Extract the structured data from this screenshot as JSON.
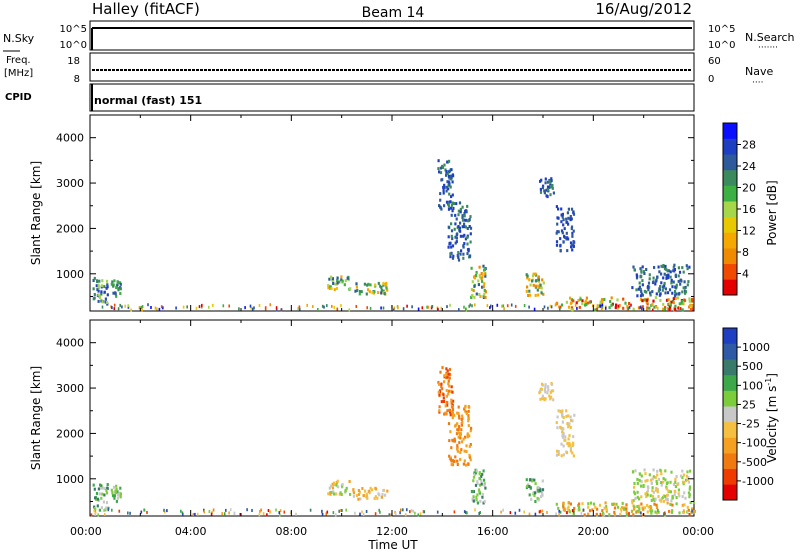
{
  "header": {
    "station": "Halley (fitACF)",
    "beam": "Beam 14",
    "date": "16/Aug/2012"
  },
  "panels": {
    "nsky": {
      "left_label": "N.Sky",
      "left_ticks": [
        "10^5",
        "10^0"
      ],
      "right_ticks": [
        "10^5",
        "10^0"
      ],
      "right_label": "N.Search",
      "right_dots": "·······"
    },
    "freq": {
      "left_label_1": "Freq.",
      "left_label_2": "[MHz]",
      "left_ticks": [
        "18",
        "8"
      ],
      "right_ticks": [
        "60",
        "0"
      ],
      "right_label": "Nave",
      "right_dots": "····"
    },
    "cpid": {
      "label": "CPID",
      "text": "normal (fast) 151"
    }
  },
  "chart_data": [
    {
      "type": "heatmap",
      "title": "",
      "xlabel": "",
      "ylabel": "Slant Range [km]",
      "x_range_hours": [
        0,
        24
      ],
      "ylim": [
        180,
        4500
      ],
      "y_ticks": [
        "4000",
        "3000",
        "2000",
        "1000"
      ],
      "y_tick_values": [
        4000,
        3000,
        2000,
        1000
      ],
      "colorbar": {
        "label": "Power [dB]",
        "ticks": [
          "28",
          "24",
          "20",
          "16",
          "12",
          "8",
          "4"
        ],
        "colors": [
          "#e50000",
          "#f04a00",
          "#f08a00",
          "#f5a800",
          "#e8c800",
          "#a6d64a",
          "#3cb043",
          "#3b8a5e",
          "#2d5a9a",
          "#1f3fc2",
          "#0a10ff"
        ]
      },
      "clusters": [
        {
          "t0": 0.1,
          "t1": 0.7,
          "r0": 300,
          "r1": 900,
          "c": [
            7,
            8,
            9,
            5
          ]
        },
        {
          "t0": 0.8,
          "t1": 1.2,
          "r0": 500,
          "r1": 850,
          "c": [
            7,
            8,
            6
          ]
        },
        {
          "t0": 9.4,
          "t1": 10.3,
          "r0": 650,
          "r1": 950,
          "c": [
            3,
            4,
            5,
            6,
            8
          ]
        },
        {
          "t0": 10.4,
          "t1": 11.8,
          "r0": 550,
          "r1": 800,
          "c": [
            3,
            4,
            6,
            7,
            8
          ]
        },
        {
          "t0": 13.8,
          "t1": 14.4,
          "r0": 2400,
          "r1": 3500,
          "c": [
            9,
            8,
            7
          ]
        },
        {
          "t0": 14.2,
          "t1": 15.1,
          "r0": 1300,
          "r1": 2600,
          "c": [
            8,
            9,
            7
          ]
        },
        {
          "t0": 15.1,
          "t1": 15.7,
          "r0": 450,
          "r1": 1200,
          "c": [
            2,
            3,
            5,
            6,
            8
          ]
        },
        {
          "t0": 17.3,
          "t1": 18.0,
          "r0": 500,
          "r1": 1000,
          "c": [
            2,
            3,
            5,
            7
          ]
        },
        {
          "t0": 17.8,
          "t1": 18.4,
          "r0": 2700,
          "r1": 3100,
          "c": [
            8,
            9,
            7
          ]
        },
        {
          "t0": 18.5,
          "t1": 19.2,
          "r0": 1500,
          "r1": 2500,
          "c": [
            8,
            9
          ]
        },
        {
          "t0": 18.5,
          "t1": 24.0,
          "r0": 200,
          "r1": 480,
          "c": [
            0,
            1,
            2,
            3,
            6,
            5
          ]
        },
        {
          "t0": 21.5,
          "t1": 23.8,
          "r0": 500,
          "r1": 1200,
          "c": [
            8,
            9,
            7
          ]
        }
      ]
    },
    {
      "type": "heatmap",
      "title": "",
      "xlabel": "Time UT",
      "ylabel": "Slant Range [km]",
      "x_range_hours": [
        0,
        24
      ],
      "x_ticks": [
        "00:00",
        "04:00",
        "08:00",
        "12:00",
        "16:00",
        "20:00",
        "00:00"
      ],
      "ylim": [
        180,
        4500
      ],
      "y_ticks": [
        "4000",
        "3000",
        "2000",
        "1000"
      ],
      "y_tick_values": [
        4000,
        3000,
        2000,
        1000
      ],
      "colorbar": {
        "label": "Velocity [m s",
        "label_sup": "-1",
        "label_end": "]",
        "ticks": [
          "1000",
          "500",
          "100",
          "25",
          "-25",
          "-100",
          "-500",
          "-1000"
        ],
        "colors": [
          "#e50000",
          "#ef3a00",
          "#f07a10",
          "#f5a020",
          "#f5c040",
          "#c8c8c8",
          "#7ccd3c",
          "#3da84a",
          "#3a7a6a",
          "#2f5aa6",
          "#1f3fc2"
        ]
      },
      "clusters": [
        {
          "t0": 0.1,
          "t1": 0.7,
          "r0": 300,
          "r1": 900,
          "c": [
            6,
            7,
            8,
            5
          ]
        },
        {
          "t0": 0.8,
          "t1": 1.2,
          "r0": 500,
          "r1": 850,
          "c": [
            6,
            7,
            5
          ]
        },
        {
          "t0": 9.4,
          "t1": 10.3,
          "r0": 650,
          "r1": 950,
          "c": [
            5,
            3,
            4,
            6
          ]
        },
        {
          "t0": 10.4,
          "t1": 11.8,
          "r0": 550,
          "r1": 800,
          "c": [
            5,
            4,
            3
          ]
        },
        {
          "t0": 13.8,
          "t1": 14.4,
          "r0": 2400,
          "r1": 3500,
          "c": [
            2,
            3,
            1
          ]
        },
        {
          "t0": 14.2,
          "t1": 15.1,
          "r0": 1300,
          "r1": 2600,
          "c": [
            2,
            3
          ]
        },
        {
          "t0": 15.1,
          "t1": 15.7,
          "r0": 450,
          "r1": 1200,
          "c": [
            6,
            7,
            8,
            5
          ]
        },
        {
          "t0": 17.3,
          "t1": 18.0,
          "r0": 500,
          "r1": 1000,
          "c": [
            6,
            7,
            8,
            5
          ]
        },
        {
          "t0": 17.8,
          "t1": 18.4,
          "r0": 2700,
          "r1": 3100,
          "c": [
            5,
            4
          ]
        },
        {
          "t0": 18.5,
          "t1": 19.2,
          "r0": 1500,
          "r1": 2500,
          "c": [
            5,
            4
          ]
        },
        {
          "t0": 18.5,
          "t1": 24.0,
          "r0": 200,
          "r1": 480,
          "c": [
            3,
            4,
            6,
            2
          ]
        },
        {
          "t0": 21.5,
          "t1": 23.8,
          "r0": 500,
          "r1": 1200,
          "c": [
            5,
            4,
            6
          ]
        }
      ]
    }
  ]
}
